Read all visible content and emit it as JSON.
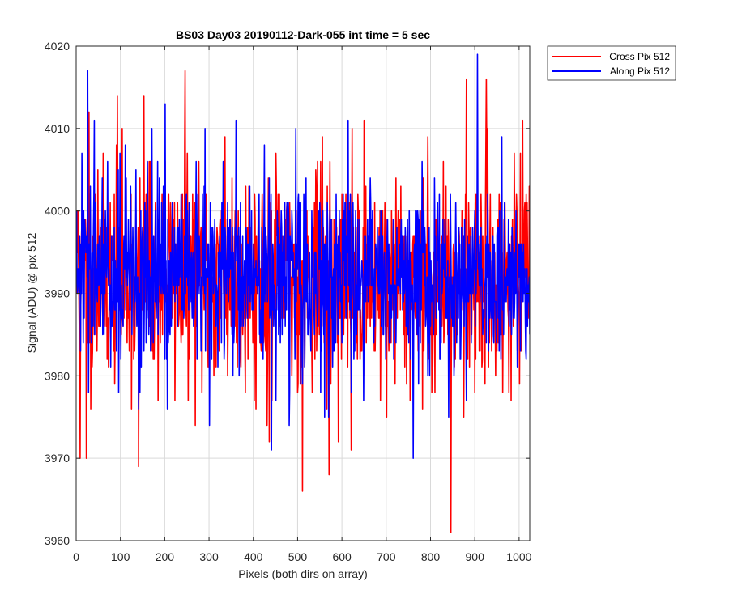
{
  "chart_data": {
    "type": "line",
    "title": "BS03 Day03 20190112-Dark-055 int time = 5 sec",
    "xlabel": "Pixels (both dirs on array)",
    "ylabel": "Signal (ADU) @ pix 512",
    "xlim": [
      0,
      1024
    ],
    "ylim": [
      3960,
      4020
    ],
    "xticks": [
      0,
      100,
      200,
      300,
      400,
      500,
      600,
      700,
      800,
      900,
      1000
    ],
    "yticks": [
      3960,
      3970,
      3980,
      3990,
      4000,
      4010,
      4020
    ],
    "grid": true,
    "legend_position": "outside-top-right",
    "series": [
      {
        "name": "Cross Pix 512",
        "color": "#ff0000",
        "center": 3992,
        "noise_sd": 6.5,
        "seed": 11,
        "peaks": [
          [
            3,
            4000
          ],
          [
            8,
            3970
          ],
          [
            22,
            3970
          ],
          [
            28,
            4012
          ],
          [
            48,
            4005
          ],
          [
            92,
            4014
          ],
          [
            140,
            3969
          ],
          [
            152,
            4014
          ],
          [
            200,
            4006
          ],
          [
            245,
            4017
          ],
          [
            335,
            4009
          ],
          [
            435,
            3972
          ],
          [
            510,
            3966
          ],
          [
            540,
            4005
          ],
          [
            570,
            3968
          ],
          [
            620,
            3971
          ],
          [
            700,
            3975
          ],
          [
            845,
            3961
          ],
          [
            880,
            4016
          ],
          [
            925,
            4016
          ]
        ]
      },
      {
        "name": "Along Pix 512",
        "color": "#0000ff",
        "center": 3992,
        "noise_sd": 5.5,
        "seed": 29,
        "peaks": [
          [
            12,
            4007
          ],
          [
            25,
            4017
          ],
          [
            40,
            4011
          ],
          [
            70,
            4006
          ],
          [
            110,
            4008
          ],
          [
            140,
            3976
          ],
          [
            170,
            4010
          ],
          [
            200,
            4013
          ],
          [
            205,
            3976
          ],
          [
            290,
            4010
          ],
          [
            300,
            3974
          ],
          [
            360,
            4011
          ],
          [
            440,
            3971
          ],
          [
            480,
            3974
          ],
          [
            560,
            3975
          ],
          [
            620,
            3978
          ],
          [
            760,
            3970
          ],
          [
            840,
            3975
          ],
          [
            880,
            3977
          ],
          [
            905,
            4019
          ],
          [
            960,
            4009
          ]
        ]
      }
    ]
  }
}
